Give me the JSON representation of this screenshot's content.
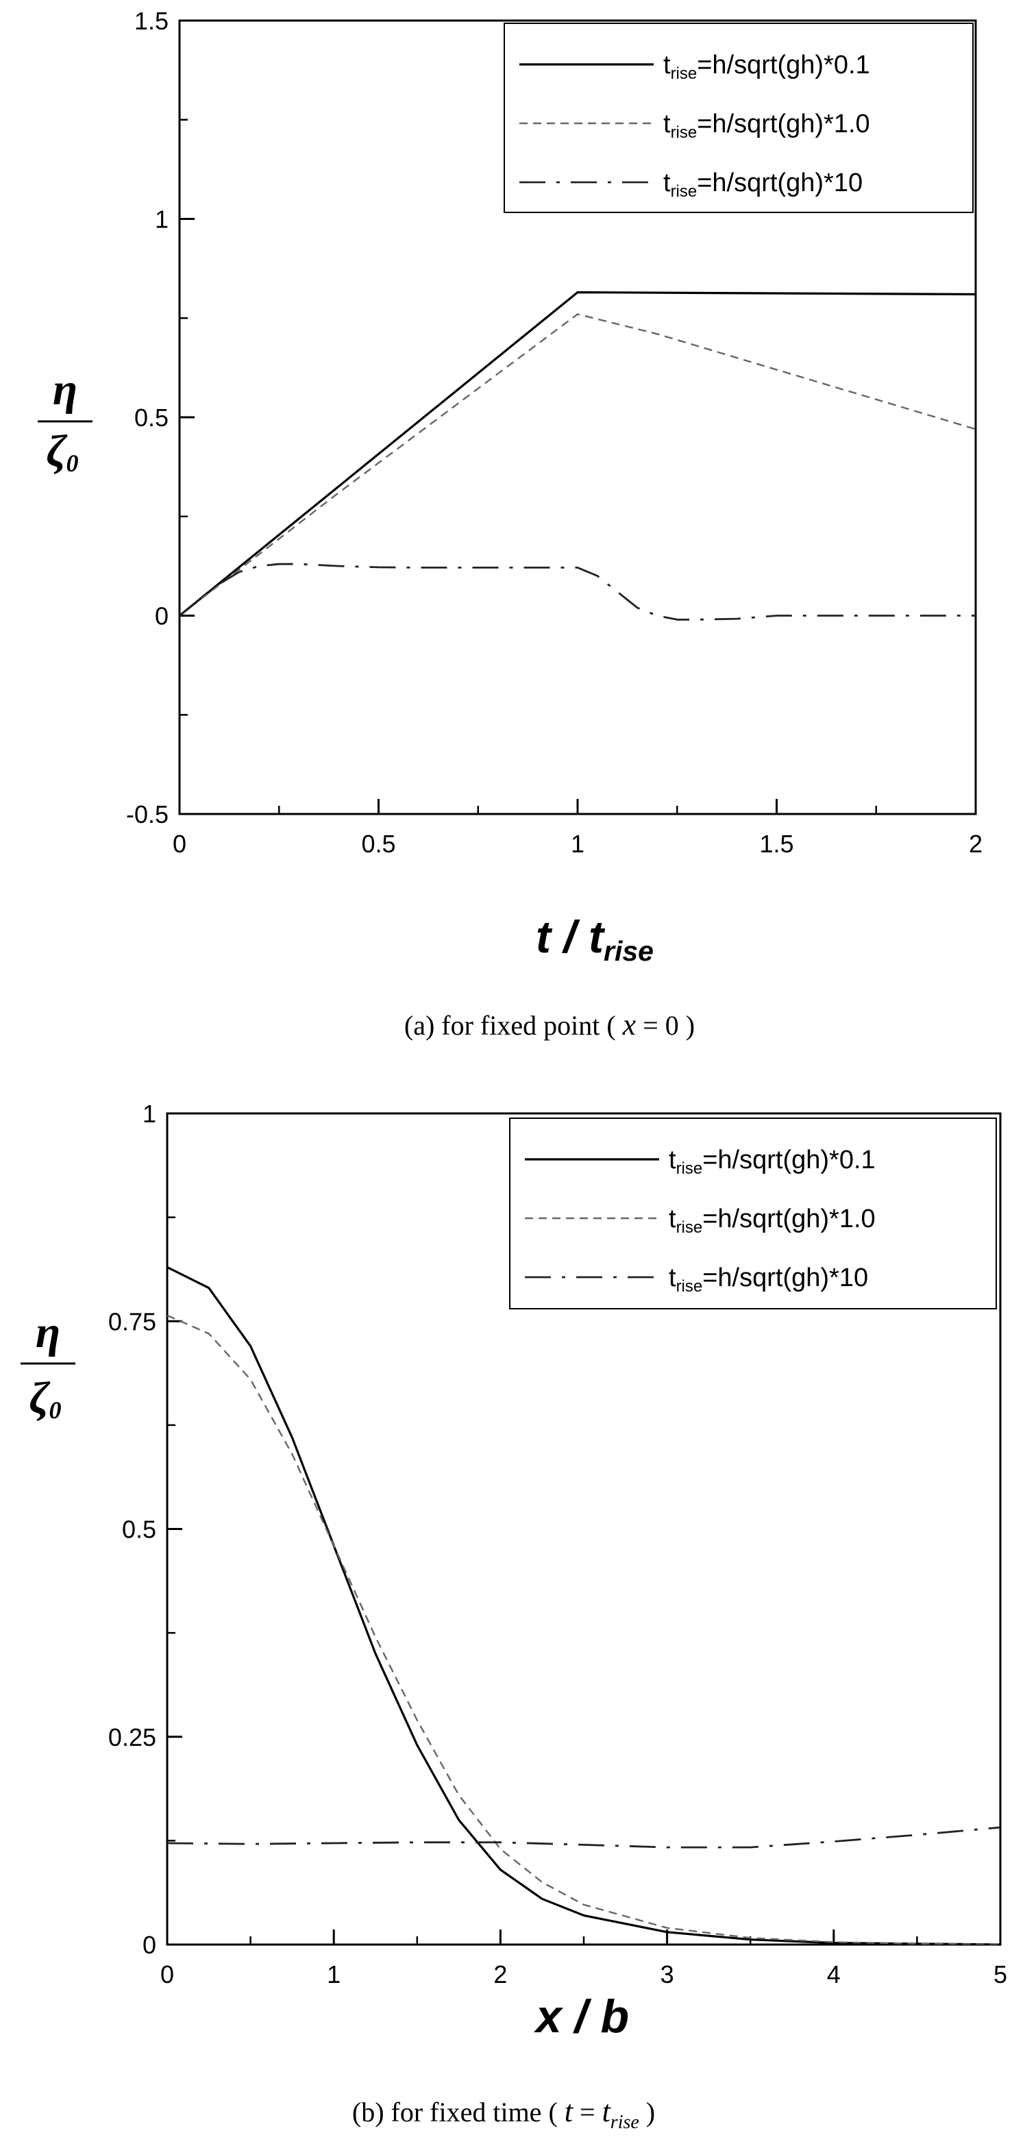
{
  "chart_data": [
    {
      "type": "line",
      "caption": {
        "prefix": "(a)   for fixed point ( ",
        "var": "x",
        "suffix": " = 0 )"
      },
      "xlabel": {
        "main": "t / t",
        "sub": "rise"
      },
      "ylabel": {
        "num": "η",
        "den": "ζ",
        "den_sub": "0"
      },
      "xlim": [
        0,
        2
      ],
      "ylim": [
        -0.5,
        1.5
      ],
      "xticks": [
        0,
        0.5,
        1,
        1.5,
        2
      ],
      "xtick_labels": [
        "0",
        "0.5",
        "1",
        "1.5",
        "2"
      ],
      "yticks": [
        -0.5,
        0,
        0.5,
        1,
        1.5
      ],
      "ytick_labels": [
        "-0.5",
        "0",
        "0.5",
        "1",
        "1.5"
      ],
      "legend_position": "top-right",
      "series": [
        {
          "name": "t_rise=h/sqrt(gh)*0.1",
          "legend": {
            "pre": "t",
            "sub": "rise",
            "post": "=h/sqrt(gh)*0.1"
          },
          "style": "solid",
          "x": [
            0,
            1,
            2
          ],
          "y": [
            0,
            0.815,
            0.81
          ]
        },
        {
          "name": "t_rise=h/sqrt(gh)*1.0",
          "legend": {
            "pre": "t",
            "sub": "rise",
            "post": "=h/sqrt(gh)*1.0"
          },
          "style": "dash",
          "x": [
            0,
            0.2,
            0.4,
            0.6,
            0.8,
            1.0,
            1.2,
            1.4,
            1.6,
            1.8,
            2.0
          ],
          "y": [
            0,
            0.155,
            0.31,
            0.46,
            0.61,
            0.76,
            0.71,
            0.65,
            0.59,
            0.53,
            0.47
          ]
        },
        {
          "name": "t_rise=h/sqrt(gh)*10",
          "legend": {
            "pre": "t",
            "sub": "rise",
            "post": "=h/sqrt(gh)*10"
          },
          "style": "dashdot",
          "x": [
            0,
            0.05,
            0.1,
            0.15,
            0.2,
            0.25,
            0.3,
            0.4,
            0.5,
            0.6,
            0.7,
            0.8,
            0.9,
            1.0,
            1.05,
            1.1,
            1.15,
            1.2,
            1.25,
            1.3,
            1.4,
            1.5,
            1.6,
            1.8,
            2.0
          ],
          "y": [
            0,
            0.04,
            0.08,
            0.11,
            0.125,
            0.13,
            0.13,
            0.125,
            0.122,
            0.121,
            0.121,
            0.121,
            0.121,
            0.121,
            0.1,
            0.06,
            0.02,
            0.0,
            -0.01,
            -0.01,
            -0.008,
            0.0,
            0.0,
            0.0,
            0.0
          ]
        }
      ]
    },
    {
      "type": "line",
      "caption": {
        "prefix": "(b)   for fixed time ( ",
        "var": "t",
        "mid": " = ",
        "var2": "t",
        "var2_sub": "rise",
        "suffix": " )"
      },
      "xlabel": {
        "main": "x / b",
        "sub": ""
      },
      "ylabel": {
        "num": "η",
        "den": "ζ",
        "den_sub": "0"
      },
      "xlim": [
        0,
        5
      ],
      "ylim": [
        0,
        1
      ],
      "xticks": [
        0,
        1,
        2,
        3,
        4,
        5
      ],
      "xtick_labels": [
        "0",
        "1",
        "2",
        "3",
        "4",
        "5"
      ],
      "yticks": [
        0,
        0.25,
        0.5,
        0.75,
        1
      ],
      "ytick_labels": [
        "0",
        "0.25",
        "0.5",
        "0.75",
        "1"
      ],
      "legend_position": "top-right",
      "series": [
        {
          "name": "t_rise=h/sqrt(gh)*0.1",
          "legend": {
            "pre": "t",
            "sub": "rise",
            "post": "=h/sqrt(gh)*0.1"
          },
          "style": "solid",
          "x": [
            0,
            0.25,
            0.5,
            0.75,
            1.0,
            1.25,
            1.5,
            1.75,
            2.0,
            2.25,
            2.5,
            3.0,
            3.5,
            4.0,
            4.5,
            5.0
          ],
          "y": [
            0.815,
            0.79,
            0.72,
            0.61,
            0.48,
            0.35,
            0.24,
            0.15,
            0.09,
            0.055,
            0.035,
            0.015,
            0.006,
            0.002,
            0.001,
            0.0
          ]
        },
        {
          "name": "t_rise=h/sqrt(gh)*1.0",
          "legend": {
            "pre": "t",
            "sub": "rise",
            "post": "=h/sqrt(gh)*1.0"
          },
          "style": "dash",
          "x": [
            0,
            0.25,
            0.5,
            0.75,
            1.0,
            1.25,
            1.5,
            1.75,
            2.0,
            2.25,
            2.5,
            3.0,
            3.5,
            4.0,
            4.5,
            5.0
          ],
          "y": [
            0.757,
            0.735,
            0.68,
            0.59,
            0.48,
            0.37,
            0.27,
            0.18,
            0.115,
            0.075,
            0.048,
            0.02,
            0.008,
            0.003,
            0.001,
            0.0
          ]
        },
        {
          "name": "t_rise=h/sqrt(gh)*10",
          "legend": {
            "pre": "t",
            "sub": "rise",
            "post": "=h/sqrt(gh)*10"
          },
          "style": "dashdot",
          "x": [
            0,
            0.5,
            1.0,
            1.5,
            2.0,
            2.5,
            3.0,
            3.5,
            4.0,
            4.5,
            5.0
          ],
          "y": [
            0.122,
            0.121,
            0.122,
            0.123,
            0.123,
            0.12,
            0.117,
            0.117,
            0.124,
            0.132,
            0.141
          ]
        }
      ]
    }
  ]
}
